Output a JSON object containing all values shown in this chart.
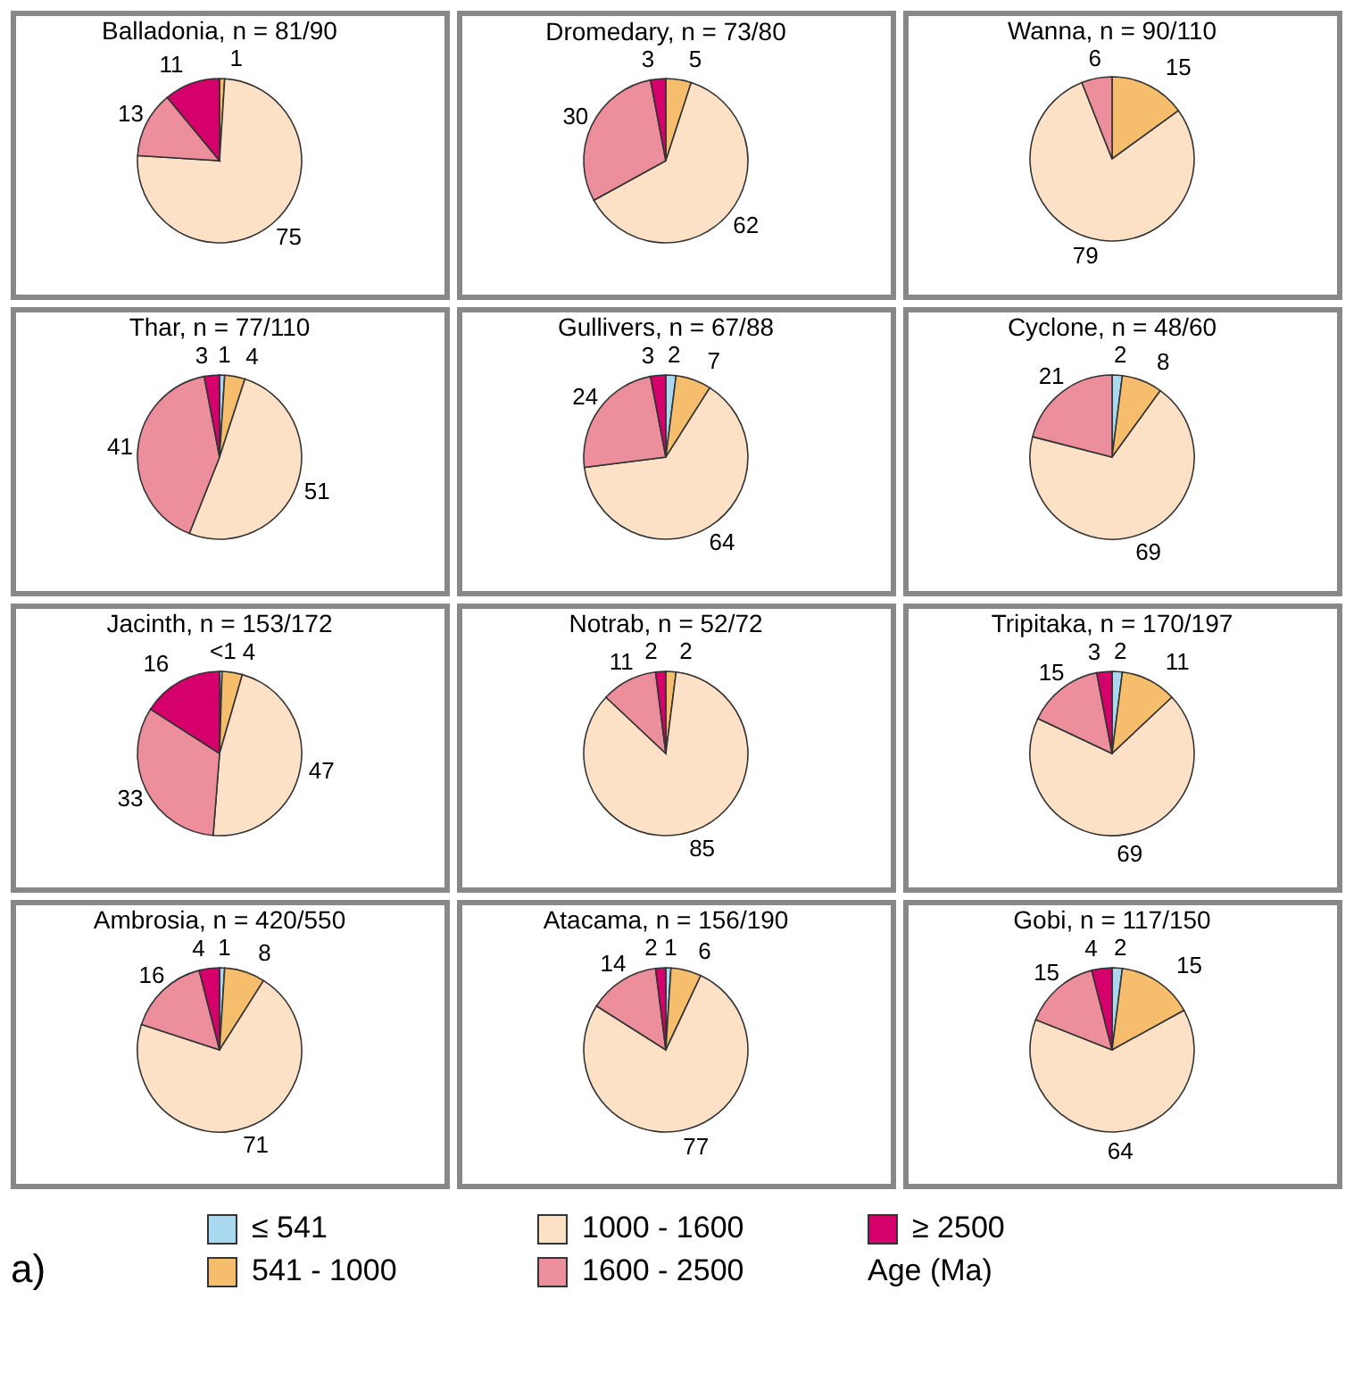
{
  "chart_data": [
    {
      "type": "pie",
      "title": "Balladonia, n = 81/90",
      "categories": [
        "≤ 541",
        "541 - 1000",
        "1000 - 1600",
        "1600 - 2500",
        "≥ 2500"
      ],
      "values": [
        null,
        1,
        75,
        13,
        11
      ],
      "colors": [
        "#a9d9ee",
        "#f6be6c",
        "#fde1c6",
        "#ec8e9c",
        "#d5006b"
      ],
      "data_labels": true,
      "legend": "bottom",
      "legend_title": "Age (Ma)",
      "annotations": [
        "a)"
      ]
    },
    {
      "type": "pie",
      "title": "Dromedary, n = 73/80",
      "categories": [
        null,
        null,
        null,
        null,
        null
      ],
      "values": [
        null,
        5,
        62,
        30,
        3
      ],
      "colors": [
        "#a9d9ee",
        "#f6be6c",
        "#fde1c6",
        "#ec8e9c",
        "#d5006b"
      ],
      "data_labels": true
    },
    {
      "type": "pie",
      "title": "Wanna, n = 90/110",
      "categories": [
        null,
        null,
        null,
        null,
        null
      ],
      "values": [
        null,
        15,
        79,
        6,
        null
      ],
      "colors": [
        "#a9d9ee",
        "#f6be6c",
        "#fde1c6",
        "#ec8e9c",
        "#d5006b"
      ],
      "data_labels": true
    },
    {
      "type": "pie",
      "title": "Thar, n = 77/110",
      "categories": [
        null,
        null,
        null,
        null,
        null
      ],
      "values": [
        1,
        4,
        51,
        41,
        3
      ],
      "colors": [
        "#a9d9ee",
        "#f6be6c",
        "#fde1c6",
        "#ec8e9c",
        "#d5006b"
      ],
      "data_labels": true
    },
    {
      "type": "pie",
      "title": "Gullivers, n = 67/88",
      "categories": [
        null,
        null,
        null,
        null,
        null
      ],
      "values": [
        2,
        7,
        64,
        24,
        3
      ],
      "colors": [
        "#a9d9ee",
        "#f6be6c",
        "#fde1c6",
        "#ec8e9c",
        "#d5006b"
      ],
      "data_labels": true
    },
    {
      "type": "pie",
      "title": "Cyclone, n = 48/60",
      "categories": [
        null,
        null,
        null,
        null,
        null
      ],
      "values": [
        2,
        8,
        69,
        21,
        null
      ],
      "colors": [
        "#a9d9ee",
        "#f6be6c",
        "#fde1c6",
        "#ec8e9c",
        "#d5006b"
      ],
      "data_labels": true
    },
    {
      "type": "pie",
      "title": "Jacinth, n = 153/172",
      "categories": [
        null,
        null,
        null,
        null,
        null
      ],
      "values": [
        0.5,
        4,
        47,
        33,
        16
      ],
      "value_labels": [
        "<1",
        "4",
        "47",
        "33",
        "16"
      ],
      "colors": [
        "#a9d9ee",
        "#f6be6c",
        "#fde1c6",
        "#ec8e9c",
        "#d5006b"
      ]
    },
    {
      "type": "pie",
      "title": "Notrab, n = 52/72",
      "categories": [
        null,
        null,
        null,
        null,
        null
      ],
      "values": [
        null,
        2,
        85,
        11,
        2
      ],
      "colors": [
        "#a9d9ee",
        "#f6be6c",
        "#fde1c6",
        "#ec8e9c",
        "#d5006b"
      ],
      "data_labels": true
    },
    {
      "type": "pie",
      "title": "Tripitaka, n = 170/197",
      "categories": [
        null,
        null,
        null,
        null,
        null
      ],
      "values": [
        2,
        11,
        69,
        15,
        3
      ],
      "colors": [
        "#a9d9ee",
        "#f6be6c",
        "#fde1c6",
        "#ec8e9c",
        "#d5006b"
      ],
      "data_labels": true
    },
    {
      "type": "pie",
      "title": "Ambrosia, n = 420/550",
      "categories": [
        null,
        null,
        null,
        null,
        null
      ],
      "values": [
        1,
        8,
        71,
        16,
        4
      ],
      "colors": [
        "#a9d9ee",
        "#f6be6c",
        "#fde1c6",
        "#ec8e9c",
        "#d5006b"
      ],
      "data_labels": true
    },
    {
      "type": "pie",
      "title": "Atacama, n = 156/190",
      "categories": [
        null,
        null,
        null,
        null,
        null
      ],
      "values": [
        1,
        6,
        77,
        14,
        2
      ],
      "colors": [
        "#a9d9ee",
        "#f6be6c",
        "#fde1c6",
        "#ec8e9c",
        "#d5006b"
      ],
      "data_labels": true
    },
    {
      "type": "pie",
      "title": "Gobi, n = 117/150",
      "categories": [
        null,
        null,
        null,
        null,
        null
      ],
      "values": [
        2,
        15,
        64,
        15,
        4
      ],
      "colors": [
        "#a9d9ee",
        "#f6be6c",
        "#fde1c6",
        "#ec8e9c",
        "#d5006b"
      ],
      "data_labels": true
    }
  ]
}
